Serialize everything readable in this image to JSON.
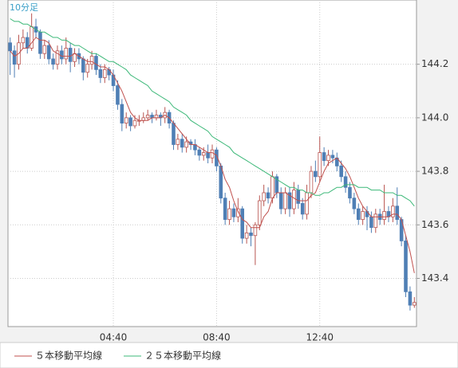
{
  "chart_data": {
    "type": "candlestick",
    "title": "10分足",
    "categories": [
      null,
      null,
      null,
      null,
      null,
      null,
      null,
      null,
      null,
      null,
      null,
      null,
      null,
      null,
      null,
      null,
      null,
      null,
      null,
      null,
      null,
      null,
      null,
      null,
      "04:40",
      null,
      null,
      null,
      null,
      null,
      null,
      null,
      null,
      null,
      null,
      null,
      null,
      null,
      null,
      null,
      null,
      null,
      null,
      null,
      null,
      null,
      null,
      null,
      "08:40",
      null,
      null,
      null,
      null,
      null,
      null,
      null,
      null,
      null,
      null,
      null,
      null,
      null,
      null,
      null,
      null,
      null,
      null,
      null,
      null,
      null,
      null,
      null,
      "12:40",
      null,
      null,
      null,
      null,
      null,
      null,
      null,
      null,
      null,
      null,
      null,
      null,
      null,
      null,
      null,
      null,
      null,
      null,
      null,
      null,
      null,
      null
    ],
    "open": [
      144.28,
      144.25,
      144.2,
      144.28,
      144.3,
      144.26,
      144.34,
      144.32,
      144.24,
      144.27,
      144.22,
      144.2,
      144.25,
      144.22,
      144.26,
      144.21,
      144.24,
      144.22,
      144.17,
      144.2,
      144.23,
      144.18,
      144.15,
      144.18,
      144.16,
      144.12,
      144.05,
      143.98,
      144.0,
      143.97,
      143.99,
      143.99,
      144.0,
      144.01,
      144.0,
      144.01,
      144.0,
      144.02,
      143.98,
      143.9,
      143.92,
      143.89,
      143.91,
      143.9,
      143.88,
      143.86,
      143.87,
      143.85,
      143.88,
      143.82,
      143.7,
      143.62,
      143.66,
      143.63,
      143.66,
      143.55,
      143.57,
      143.56,
      143.6,
      143.69,
      143.72,
      143.7,
      143.78,
      143.72,
      143.66,
      143.72,
      143.66,
      143.73,
      143.68,
      143.64,
      143.72,
      143.8,
      143.78,
      143.87,
      143.84,
      143.86,
      143.85,
      143.82,
      143.78,
      143.74,
      143.7,
      143.66,
      143.62,
      143.65,
      143.63,
      143.59,
      143.64,
      143.62,
      143.65,
      143.63,
      143.67,
      143.62,
      143.54,
      143.35,
      143.3
    ],
    "high": [
      144.3,
      144.27,
      144.31,
      144.33,
      144.32,
      144.39,
      144.37,
      144.33,
      144.29,
      144.29,
      144.24,
      144.27,
      144.27,
      144.3,
      144.28,
      144.26,
      144.26,
      144.23,
      144.22,
      144.25,
      144.24,
      144.2,
      144.2,
      144.19,
      144.18,
      144.14,
      144.07,
      144.02,
      144.01,
      144.01,
      144.01,
      144.02,
      144.03,
      144.02,
      144.03,
      144.02,
      144.04,
      144.03,
      143.99,
      143.94,
      143.94,
      143.93,
      143.92,
      143.92,
      143.89,
      143.89,
      143.9,
      143.9,
      143.89,
      143.83,
      143.72,
      143.69,
      143.68,
      143.7,
      143.67,
      143.6,
      143.59,
      143.61,
      143.71,
      143.75,
      143.74,
      143.8,
      143.79,
      143.74,
      143.74,
      143.74,
      143.76,
      143.75,
      143.7,
      143.75,
      143.82,
      143.84,
      143.93,
      143.89,
      143.88,
      143.88,
      143.87,
      143.84,
      143.8,
      143.76,
      143.72,
      143.68,
      143.67,
      143.67,
      143.65,
      143.66,
      143.66,
      143.75,
      143.67,
      143.7,
      143.74,
      143.63,
      143.56,
      143.37,
      143.33
    ],
    "low": [
      144.16,
      144.15,
      144.18,
      144.26,
      144.24,
      144.25,
      144.3,
      144.22,
      144.22,
      144.2,
      144.18,
      144.18,
      144.2,
      144.2,
      144.17,
      144.19,
      144.2,
      144.14,
      144.15,
      144.18,
      144.16,
      144.13,
      144.13,
      144.14,
      144.1,
      144.03,
      143.95,
      143.96,
      143.95,
      143.96,
      143.97,
      143.98,
      143.99,
      143.98,
      143.99,
      143.97,
      143.98,
      143.96,
      143.88,
      143.88,
      143.87,
      143.87,
      143.88,
      143.86,
      143.84,
      143.84,
      143.83,
      143.83,
      143.8,
      143.68,
      143.6,
      143.6,
      143.61,
      143.61,
      143.53,
      143.53,
      143.52,
      143.45,
      143.58,
      143.67,
      143.68,
      143.68,
      143.7,
      143.64,
      143.64,
      143.63,
      143.64,
      143.66,
      143.62,
      143.62,
      143.7,
      143.76,
      143.76,
      143.82,
      143.82,
      143.83,
      143.8,
      143.76,
      143.72,
      143.68,
      143.64,
      143.6,
      143.6,
      143.58,
      143.57,
      143.57,
      143.6,
      143.6,
      143.61,
      143.61,
      143.6,
      143.52,
      143.33,
      143.28,
      143.29
    ],
    "close": [
      144.25,
      144.2,
      144.28,
      144.3,
      144.26,
      144.34,
      144.32,
      144.24,
      144.27,
      144.22,
      144.2,
      144.25,
      144.22,
      144.26,
      144.21,
      144.24,
      144.22,
      144.17,
      144.2,
      144.23,
      144.18,
      144.15,
      144.18,
      144.16,
      144.12,
      144.05,
      143.98,
      144.0,
      143.97,
      143.99,
      143.99,
      144.0,
      144.01,
      144.0,
      144.01,
      144.0,
      144.02,
      143.98,
      143.9,
      143.92,
      143.89,
      143.91,
      143.9,
      143.88,
      143.86,
      143.87,
      143.85,
      143.88,
      143.82,
      143.7,
      143.62,
      143.66,
      143.63,
      143.66,
      143.55,
      143.57,
      143.56,
      143.6,
      143.69,
      143.72,
      143.7,
      143.78,
      143.72,
      143.66,
      143.72,
      143.66,
      143.73,
      143.68,
      143.64,
      143.72,
      143.8,
      143.78,
      143.87,
      143.84,
      143.86,
      143.85,
      143.82,
      143.78,
      143.74,
      143.7,
      143.66,
      143.62,
      143.65,
      143.63,
      143.59,
      143.64,
      143.62,
      143.65,
      143.63,
      143.67,
      143.62,
      143.54,
      143.35,
      143.3,
      143.31
    ],
    "up_color": "#b85450",
    "down_color": "#4f7fb5",
    "series": [
      {
        "name": "５本移動平均線",
        "color": "#c0504d",
        "values": [
          144.25,
          144.23,
          144.24,
          144.26,
          144.26,
          144.28,
          144.3,
          144.29,
          144.29,
          144.28,
          144.25,
          144.24,
          144.23,
          144.23,
          144.23,
          144.24,
          144.23,
          144.22,
          144.21,
          144.21,
          144.2,
          144.19,
          144.19,
          144.18,
          144.16,
          144.13,
          144.1,
          144.06,
          144.02,
          144.0,
          143.99,
          143.99,
          143.99,
          144.0,
          144.0,
          144.0,
          144.01,
          144.0,
          143.98,
          143.96,
          143.94,
          143.92,
          143.9,
          143.9,
          143.89,
          143.88,
          143.87,
          143.87,
          143.86,
          143.82,
          143.77,
          143.74,
          143.69,
          143.65,
          143.62,
          143.61,
          143.59,
          143.59,
          143.59,
          143.63,
          143.65,
          143.7,
          143.72,
          143.72,
          143.72,
          143.71,
          143.7,
          143.69,
          143.69,
          143.69,
          143.71,
          143.72,
          143.76,
          143.8,
          143.83,
          143.84,
          143.85,
          143.83,
          143.81,
          143.78,
          143.74,
          143.7,
          143.67,
          143.65,
          143.63,
          143.63,
          143.63,
          143.63,
          143.63,
          143.64,
          143.64,
          143.62,
          143.56,
          143.5,
          143.42
        ]
      },
      {
        "name": "２５本移動平均線",
        "color": "#3cb878",
        "values": [
          144.37,
          144.36,
          144.36,
          144.35,
          144.35,
          144.34,
          144.33,
          144.32,
          144.32,
          144.31,
          144.3,
          144.3,
          144.29,
          144.29,
          144.28,
          144.27,
          144.27,
          144.26,
          144.25,
          144.24,
          144.24,
          144.23,
          144.22,
          144.21,
          144.21,
          144.2,
          144.19,
          144.18,
          144.16,
          144.15,
          144.14,
          144.13,
          144.12,
          144.1,
          144.09,
          144.08,
          144.07,
          144.06,
          144.04,
          144.03,
          144.02,
          144.01,
          143.99,
          143.98,
          143.97,
          143.96,
          143.95,
          143.93,
          143.92,
          143.91,
          143.9,
          143.89,
          143.87,
          143.86,
          143.85,
          143.84,
          143.83,
          143.82,
          143.81,
          143.8,
          143.79,
          143.78,
          143.77,
          143.76,
          143.75,
          143.74,
          143.74,
          143.73,
          143.73,
          143.72,
          143.72,
          143.71,
          143.71,
          143.72,
          143.72,
          143.73,
          143.74,
          143.74,
          143.75,
          143.75,
          143.75,
          143.74,
          143.74,
          143.74,
          143.73,
          143.73,
          143.73,
          143.72,
          143.72,
          143.72,
          143.71,
          143.71,
          143.7,
          143.69,
          143.67
        ]
      }
    ],
    "ylim": [
      143.22,
      144.44
    ],
    "yticks": [
      143.4,
      143.6,
      143.8,
      {
        "value": 144,
        "label": "144.0"
      },
      144.2
    ],
    "grid": true
  }
}
